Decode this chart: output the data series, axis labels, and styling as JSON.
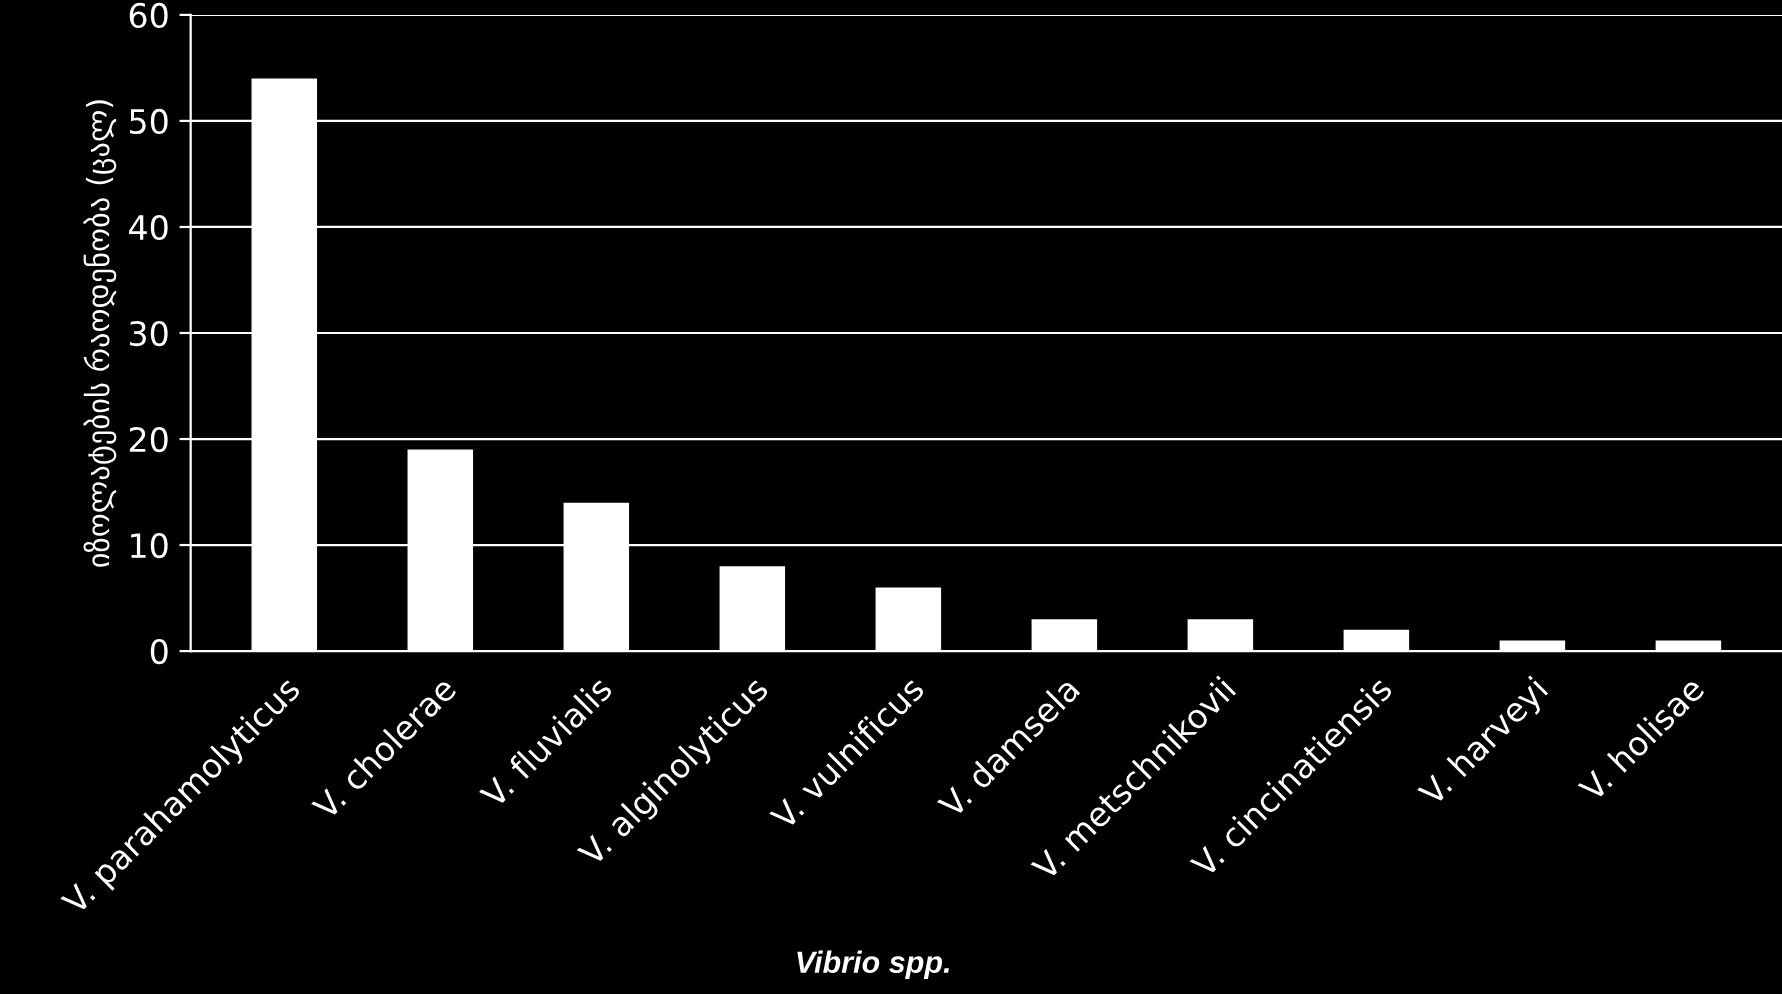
{
  "chart_data": {
    "type": "bar",
    "xlabel": "Vibrio spp.",
    "ylabel": "იზოლატების რაოდენობა (ცალ)",
    "categories": [
      "V. parahamolyticus",
      "V. cholerae",
      "V. fluvialis",
      "V. alginolyticus",
      "V. vulnificus",
      "V. damsela",
      "V. metschnikovii",
      "V. cincinatiensis",
      "V. harveyi",
      "V. holisae"
    ],
    "values": [
      54,
      19,
      14,
      8,
      6,
      3,
      3,
      2,
      1,
      1
    ],
    "color": "#ffffff",
    "ylim": [
      0,
      60
    ],
    "yticks": [
      0,
      10,
      20,
      30,
      40,
      50,
      60
    ],
    "grid": "y",
    "legend": false
  }
}
